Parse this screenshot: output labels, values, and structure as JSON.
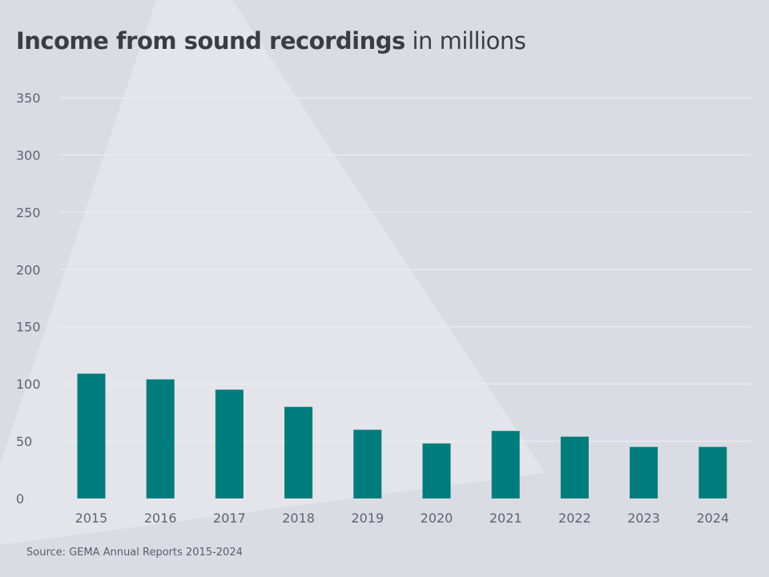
{
  "title_bold": "Income from sound recordings",
  "title_rest": "in millions",
  "source": "Source: GEMA Annual Reports 2015-2024",
  "colors": {
    "background": "#d9dce3",
    "highlight": "#e3e5ea",
    "bar": "#007c7c",
    "grid": "#eef0f3",
    "tick_text": "#5f636b"
  },
  "chart_data": {
    "type": "bar",
    "title": "Income from sound recordings in millions",
    "categories": [
      "2015",
      "2016",
      "2017",
      "2018",
      "2019",
      "2020",
      "2021",
      "2022",
      "2023",
      "2024"
    ],
    "values": [
      109,
      104,
      95,
      80,
      60,
      48,
      59,
      54,
      45,
      45
    ],
    "yticks": [
      "0",
      "50",
      "100",
      "150",
      "200",
      "250",
      "300",
      "350"
    ],
    "ylim": [
      0,
      350
    ],
    "grid": true,
    "source": "Source: GEMA Annual Reports 2015-2024"
  }
}
